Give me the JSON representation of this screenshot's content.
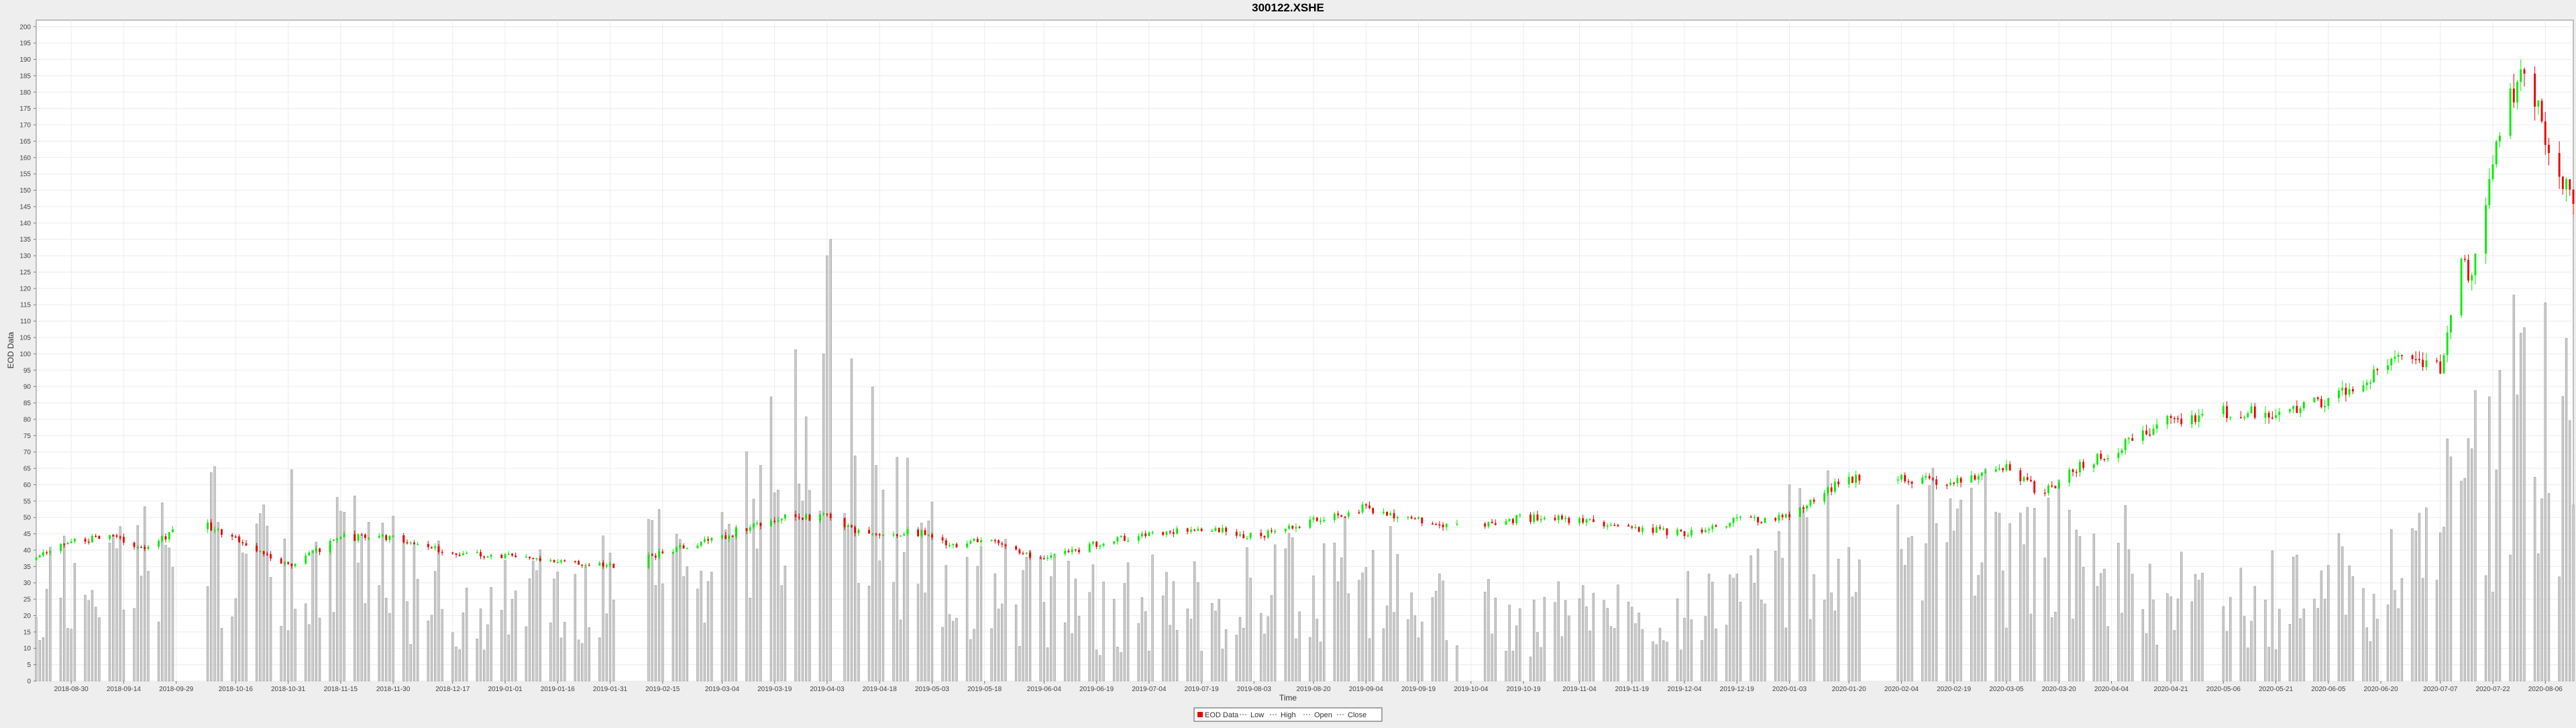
{
  "chart_data": {
    "type": "candlestick",
    "title": "300122.XSHE",
    "xlabel": "Time",
    "ylabel": "EOD Data",
    "ylim": [
      0,
      202
    ],
    "yticks": [
      0,
      5,
      10,
      15,
      20,
      25,
      30,
      35,
      40,
      45,
      50,
      55,
      60,
      65,
      70,
      75,
      80,
      85,
      90,
      95,
      100,
      105,
      110,
      115,
      120,
      125,
      130,
      135,
      140,
      145,
      150,
      155,
      160,
      165,
      170,
      175,
      180,
      185,
      190,
      195,
      200
    ],
    "xlim": [
      "2018-08-20",
      "2020-08-14"
    ],
    "x_tick_labels": [
      "2018-08-30",
      "2018-09-14",
      "2018-09-29",
      "2018-10-16",
      "2018-10-31",
      "2018-11-15",
      "2018-11-30",
      "2018-12-17",
      "2019-01-01",
      "2019-01-16",
      "2019-01-31",
      "2019-02-15",
      "2019-03-04",
      "2019-03-19",
      "2019-04-03",
      "2019-04-18",
      "2019-05-03",
      "2019-05-18",
      "2019-06-04",
      "2019-06-19",
      "2019-07-04",
      "2019-07-19",
      "2019-08-03",
      "2019-08-20",
      "2019-09-04",
      "2019-09-19",
      "2019-10-04",
      "2019-10-19",
      "2019-11-04",
      "2019-11-19",
      "2019-12-04",
      "2019-12-19",
      "2020-01-03",
      "2020-01-20",
      "2020-02-04",
      "2020-02-19",
      "2020-03-05",
      "2020-03-20",
      "2020-04-04",
      "2020-04-21",
      "2020-05-06",
      "2020-05-21",
      "2020-06-05",
      "2020-06-20",
      "2020-07-07",
      "2020-07-22",
      "2020-08-06"
    ],
    "grid": true,
    "legend_position": "bottom-center",
    "legend": [
      "EOD Data",
      "Low",
      "High",
      "Open",
      "Close"
    ],
    "colors": {
      "up": "#00ee00",
      "down": "#ee0000",
      "volume": "#cccccc",
      "volume_edge": "#9a9a9a",
      "plot_bg": "#ffffff",
      "page_bg": "#eeeeee"
    },
    "price_path": [
      [
        "2018-08-20",
        37
      ],
      [
        "2018-08-27",
        42
      ],
      [
        "2018-09-10",
        44
      ],
      [
        "2018-09-20",
        41
      ],
      [
        "2018-10-05",
        49
      ],
      [
        "2018-10-16",
        44
      ],
      [
        "2018-10-31",
        35
      ],
      [
        "2018-11-15",
        44
      ],
      [
        "2018-11-30",
        44
      ],
      [
        "2018-12-17",
        39
      ],
      [
        "2019-01-02",
        38
      ],
      [
        "2019-01-16",
        37
      ],
      [
        "2019-01-31",
        35
      ],
      [
        "2019-02-15",
        39
      ],
      [
        "2019-03-04",
        44
      ],
      [
        "2019-03-19",
        50
      ],
      [
        "2019-04-03",
        50
      ],
      [
        "2019-04-10",
        46
      ],
      [
        "2019-04-30",
        45
      ],
      [
        "2019-05-10",
        41
      ],
      [
        "2019-05-18",
        44
      ],
      [
        "2019-06-04",
        37
      ],
      [
        "2019-06-19",
        42
      ],
      [
        "2019-07-04",
        45
      ],
      [
        "2019-07-19",
        47
      ],
      [
        "2019-08-03",
        44
      ],
      [
        "2019-08-20",
        49
      ],
      [
        "2019-09-04",
        53
      ],
      [
        "2019-09-19",
        49
      ],
      [
        "2019-10-04",
        47
      ],
      [
        "2019-10-19",
        50
      ],
      [
        "2019-11-04",
        49
      ],
      [
        "2019-11-19",
        47
      ],
      [
        "2019-12-04",
        45
      ],
      [
        "2019-12-19",
        49
      ],
      [
        "2020-01-03",
        50
      ],
      [
        "2020-01-10",
        56
      ],
      [
        "2020-01-20",
        62
      ],
      [
        "2020-02-04",
        62
      ],
      [
        "2020-02-19",
        61
      ],
      [
        "2020-03-05",
        66
      ],
      [
        "2020-03-15",
        57
      ],
      [
        "2020-03-25",
        65
      ],
      [
        "2020-04-04",
        70
      ],
      [
        "2020-04-21",
        80
      ],
      [
        "2020-05-06",
        82
      ],
      [
        "2020-05-21",
        82
      ],
      [
        "2020-06-05",
        86
      ],
      [
        "2020-06-15",
        92
      ],
      [
        "2020-06-25",
        98
      ],
      [
        "2020-07-07",
        96
      ],
      [
        "2020-07-13",
        128
      ],
      [
        "2020-07-16",
        124
      ],
      [
        "2020-07-22",
        158
      ],
      [
        "2020-07-27",
        178
      ],
      [
        "2020-07-31",
        190
      ],
      [
        "2020-08-06",
        168
      ],
      [
        "2020-08-14",
        145
      ]
    ],
    "volume_path": [
      [
        "2018-08-20",
        30
      ],
      [
        "2018-10-25",
        45
      ],
      [
        "2018-12-20",
        25
      ],
      [
        "2019-01-31",
        28
      ],
      [
        "2019-03-10",
        45
      ],
      [
        "2019-04-03",
        75
      ],
      [
        "2019-05-03",
        35
      ],
      [
        "2019-06-19",
        22
      ],
      [
        "2019-08-03",
        28
      ],
      [
        "2019-09-04",
        32
      ],
      [
        "2019-10-19",
        20
      ],
      [
        "2019-12-19",
        22
      ],
      [
        "2020-01-05",
        45
      ],
      [
        "2020-02-04",
        55
      ],
      [
        "2020-03-05",
        42
      ],
      [
        "2020-04-04",
        35
      ],
      [
        "2020-05-06",
        25
      ],
      [
        "2020-06-20",
        32
      ],
      [
        "2020-07-22",
        65
      ],
      [
        "2020-08-14",
        80
      ]
    ],
    "volume_spikes": [
      [
        "2019-04-03",
        130
      ],
      [
        "2019-04-04",
        135
      ],
      [
        "2019-04-02",
        100
      ],
      [
        "2020-07-28",
        118
      ],
      [
        "2020-07-31",
        108
      ]
    ],
    "volume_gaps": [
      [
        "2018-10-01",
        "2018-10-07"
      ],
      [
        "2019-02-04",
        "2019-02-10"
      ],
      [
        "2019-04-05",
        "2019-04-07"
      ],
      [
        "2019-10-01",
        "2019-10-07"
      ],
      [
        "2020-01-24",
        "2020-02-02"
      ],
      [
        "2020-05-01",
        "2020-05-05"
      ]
    ],
    "seed": 7
  }
}
